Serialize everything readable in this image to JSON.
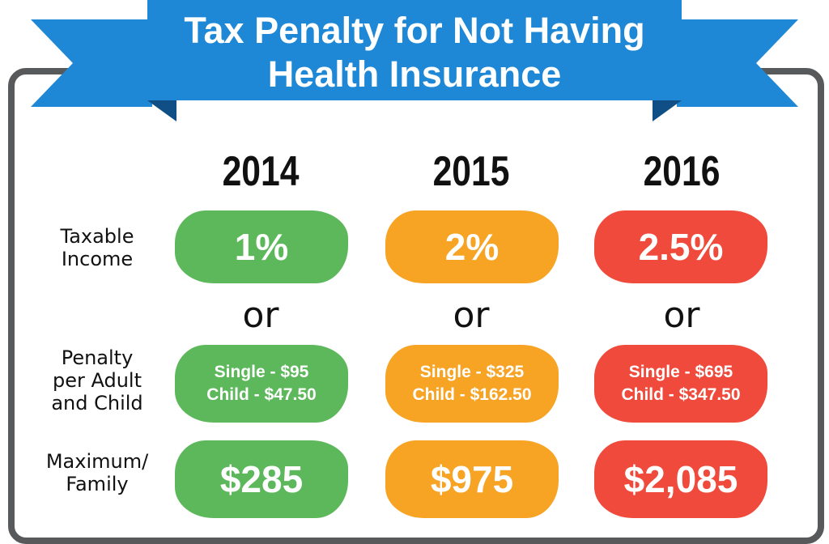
{
  "title_line1": "Tax Penalty for Not Having",
  "title_line2": "Health Insurance",
  "years": [
    "2014",
    "2015",
    "2016"
  ],
  "row_labels": {
    "taxable_line1": "Taxable",
    "taxable_line2": "Income",
    "penalty_line1": "Penalty",
    "penalty_line2": "per Adult",
    "penalty_line3": "and Child",
    "max_line1": "Maximum/",
    "max_line2": "Family"
  },
  "or_text": "or",
  "columns": [
    {
      "year": "2014",
      "rate": "1%",
      "single": "Single - $95",
      "child": "Child - $47.50",
      "maximum": "$285",
      "color": "#5cb85a"
    },
    {
      "year": "2015",
      "rate": "2%",
      "single": "Single - $325",
      "child": "Child - $162.50",
      "maximum": "$975",
      "color": "#f7a324"
    },
    {
      "year": "2016",
      "rate": "2.5%",
      "single": "Single - $695",
      "child": "Child - $347.50",
      "maximum": "$2,085",
      "color": "#ef4a3b"
    }
  ],
  "colors": {
    "banner": "#1e88d6",
    "banner_dark": "#1565a8",
    "frame": "#58595b"
  }
}
